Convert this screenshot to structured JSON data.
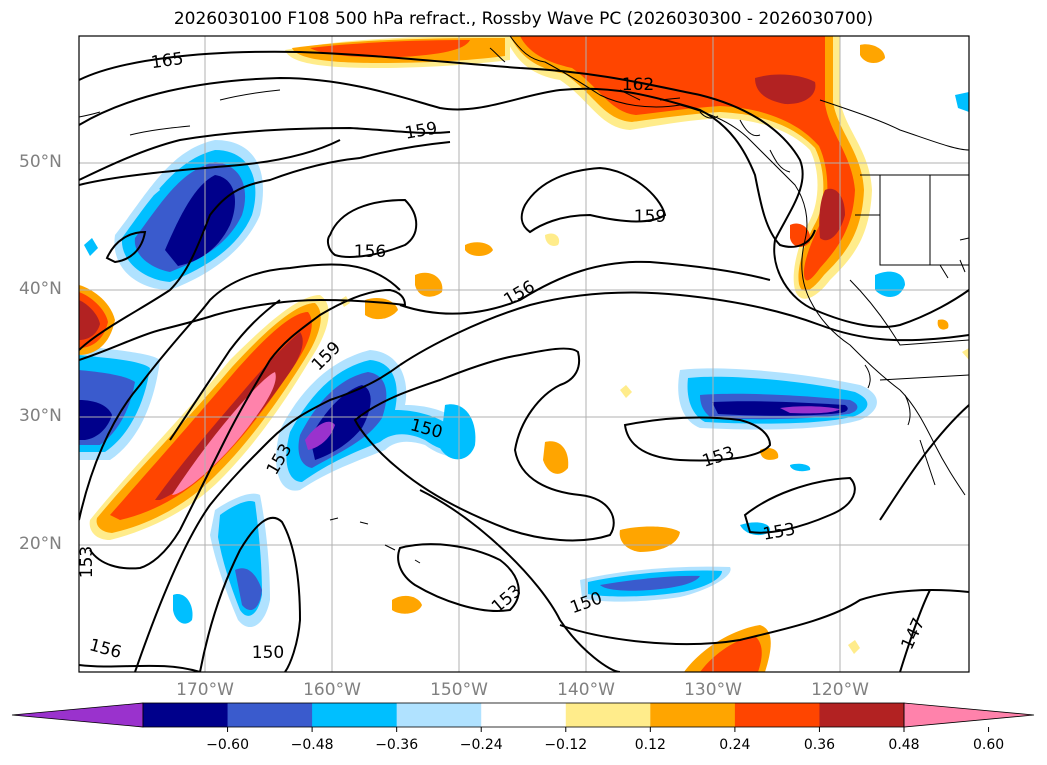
{
  "title": "2026030100 F108 500 hPa refract., Rossby Wave PC (2026030300 - 2026030700)",
  "latitude_labels": [
    "50°N",
    "40°N",
    "30°N",
    "20°N"
  ],
  "longitude_labels": [
    "170°W",
    "160°W",
    "150°W",
    "140°W",
    "130°W",
    "120°W"
  ],
  "contour_labels": [
    "165",
    "162",
    "159",
    "159",
    "159",
    "156",
    "156",
    "153",
    "150",
    "153",
    "153",
    "150",
    "153",
    "153",
    "150",
    "156",
    "147"
  ],
  "colorbar": {
    "tick_labels": [
      "−0.60",
      "−0.48",
      "−0.36",
      "−0.24",
      "−0.12",
      "0.12",
      "0.24",
      "0.36",
      "0.48",
      "0.60"
    ],
    "colors": [
      "#9a32cd",
      "#00008b",
      "#3a5bcd",
      "#00bfff",
      "#b0e2ff",
      "#ffffff",
      "#ffec8b",
      "#ffa500",
      "#ff4500",
      "#b22222",
      "#ff82ab"
    ]
  }
}
